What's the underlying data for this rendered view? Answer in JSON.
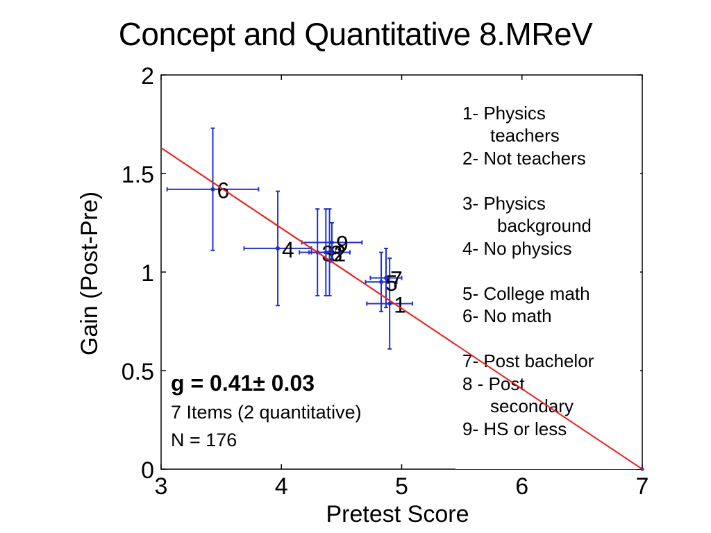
{
  "slide": {
    "title": "Concept and Quantitative 8.MReV"
  },
  "stats": {
    "g": "g = 0.41± 0.03",
    "items": "7 Items (2 quantitative)",
    "n": "N = 176"
  },
  "legend": [
    {
      "label": "1- Physics",
      "cont": "teachers"
    },
    {
      "label": "2- Not teachers"
    },
    {
      "label": "3- Physics",
      "cont": "background"
    },
    {
      "label": "4- No physics"
    },
    {
      "label": "5- College math"
    },
    {
      "label": "6- No math"
    },
    {
      "label": "7- Post bachelor"
    },
    {
      "label": "8 - Post",
      "cont": "secondary"
    },
    {
      "label": "9- HS or less"
    }
  ],
  "chart_data": {
    "type": "scatter",
    "title": "",
    "xlabel": "Pretest Score",
    "ylabel": "Gain (Post-Pre)",
    "xlim": [
      3,
      7
    ],
    "ylim": [
      0,
      2
    ],
    "xticks": [
      3,
      4,
      5,
      6,
      7
    ],
    "yticks": [
      0,
      0.5,
      1,
      1.5,
      2
    ],
    "xtick_labels": [
      "3",
      "4",
      "5",
      "6",
      "7"
    ],
    "ytick_labels": [
      "0",
      "0.5",
      "1",
      "1.5",
      "2"
    ],
    "grid": false,
    "colors": {
      "points": "#1f2fd0",
      "fit": "#e8231e"
    },
    "points": [
      {
        "label": "1",
        "x": 4.9,
        "y": 0.84,
        "xerr": 0.19,
        "yerr": 0.23
      },
      {
        "label": "2",
        "x": 4.4,
        "y": 1.1,
        "xerr": 0.17,
        "yerr": 0.22
      },
      {
        "label": "3",
        "x": 4.3,
        "y": 1.1,
        "xerr": 0.15,
        "yerr": 0.22
      },
      {
        "label": "4",
        "x": 3.97,
        "y": 1.12,
        "xerr": 0.28,
        "yerr": 0.29
      },
      {
        "label": "5",
        "x": 4.83,
        "y": 0.95,
        "xerr": 0.13,
        "yerr": 0.15
      },
      {
        "label": "6",
        "x": 3.43,
        "y": 1.42,
        "xerr": 0.38,
        "yerr": 0.31
      },
      {
        "label": "7",
        "x": 4.87,
        "y": 0.97,
        "xerr": 0.13,
        "yerr": 0.15
      },
      {
        "label": "8",
        "x": 4.37,
        "y": 1.1,
        "xerr": 0.12,
        "yerr": 0.22
      },
      {
        "label": "9",
        "x": 4.42,
        "y": 1.15,
        "xerr": 0.25,
        "yerr": 0.1
      }
    ],
    "fit": {
      "x": [
        3,
        7
      ],
      "y": [
        1.63,
        0
      ]
    }
  }
}
